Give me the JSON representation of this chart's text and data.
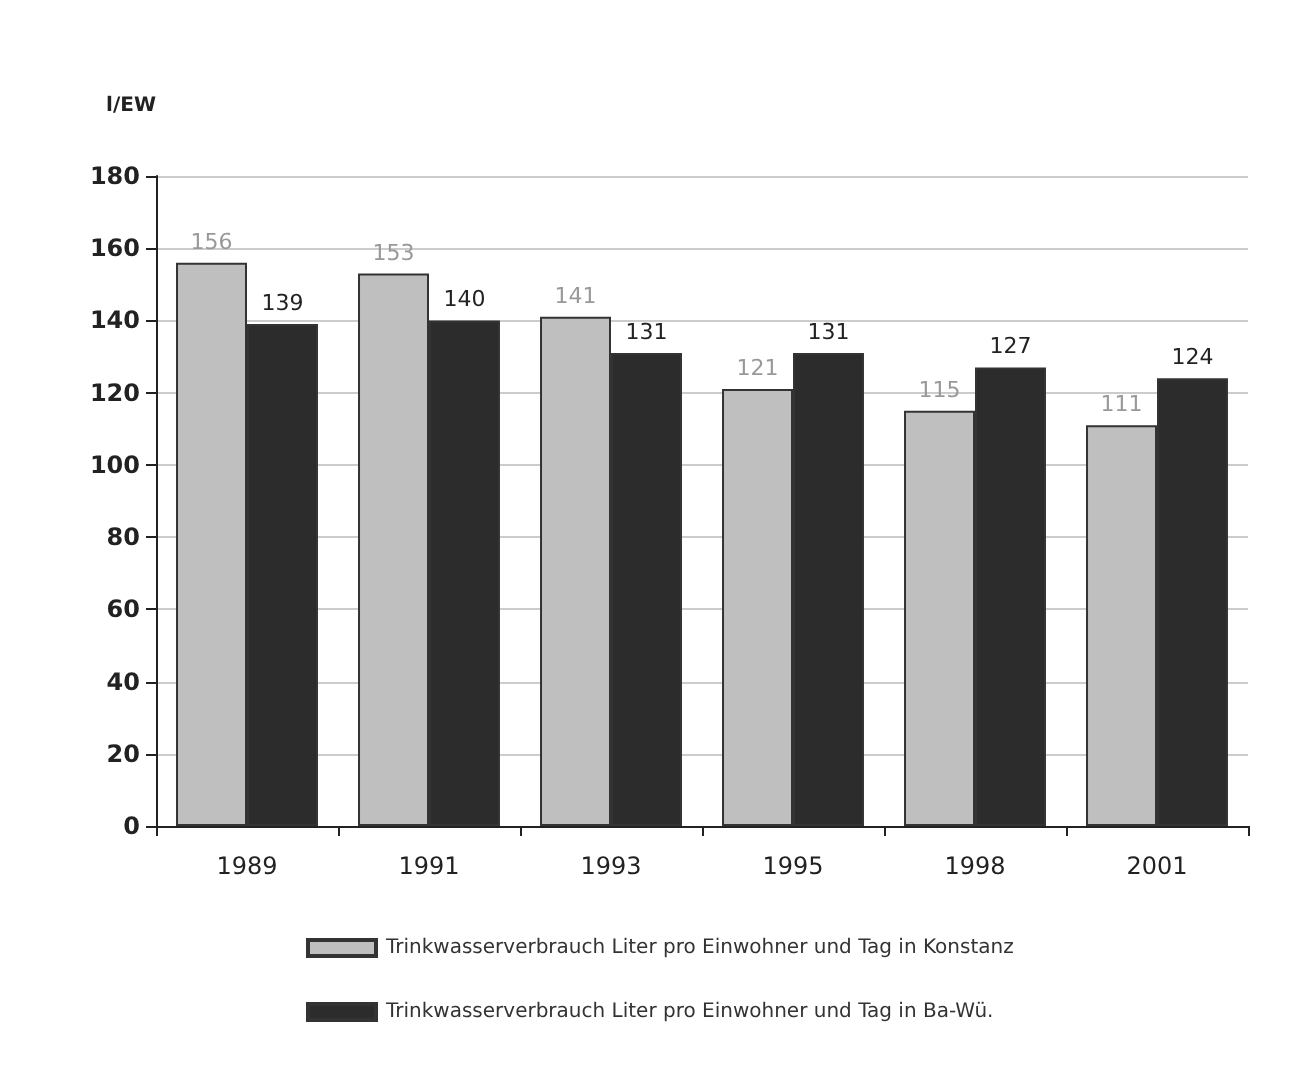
{
  "chart_data": {
    "type": "bar",
    "ylabel": "l/EW",
    "categories": [
      "1989",
      "1991",
      "1993",
      "1995",
      "1998",
      "2001"
    ],
    "series": [
      {
        "name": "Trinkwasserverbrauch Liter pro Einwohner und Tag in Konstanz",
        "color": "#c0bfc0",
        "values": [
          156,
          153,
          141,
          121,
          115,
          111
        ]
      },
      {
        "name": "Trinkwasserverbrauch Liter pro Einwohner und Tag in Ba-Wü.",
        "color": "#2d2c2d",
        "values": [
          139,
          140,
          131,
          131,
          127,
          124
        ]
      }
    ],
    "ylim": [
      0,
      180
    ],
    "yticks": [
      0,
      20,
      40,
      60,
      80,
      100,
      120,
      140,
      160,
      180
    ],
    "grid": "y",
    "legend": "bottom left",
    "data_labels": true
  }
}
